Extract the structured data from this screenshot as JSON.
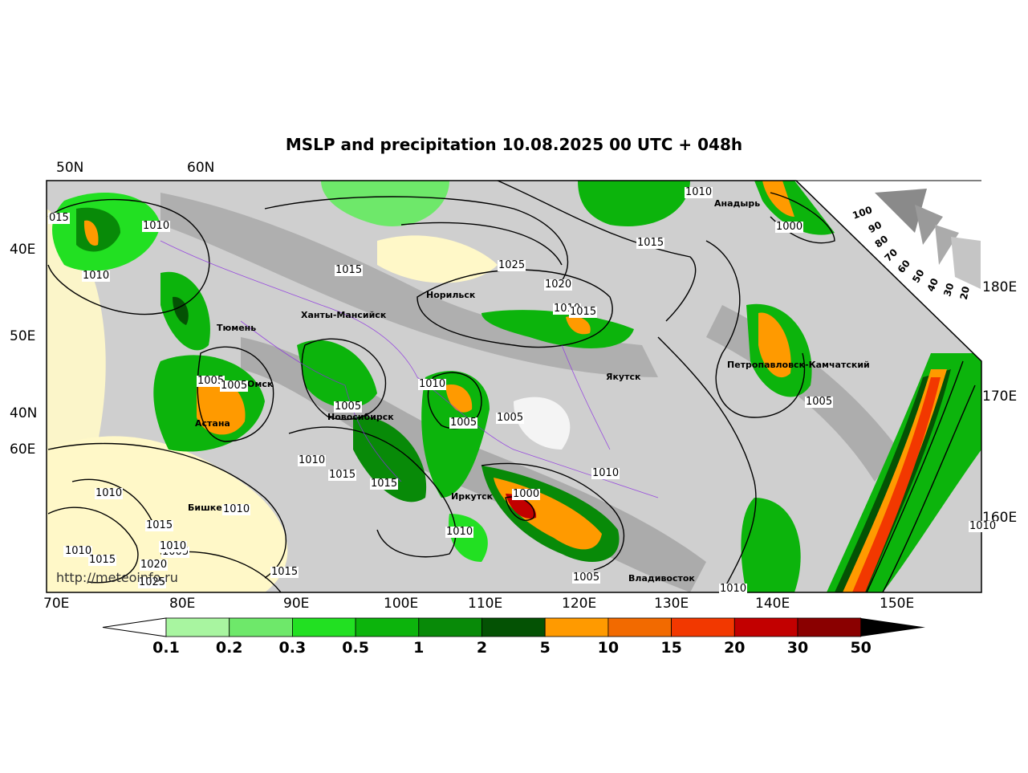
{
  "title": "MSLP and precipitation 10.08.2025 00 UTC + 048h",
  "watermark": "http://meteoinfo.ru",
  "grid_labels": {
    "top": [
      "50N",
      "60N"
    ],
    "left": [
      "40E",
      "50E",
      "40N",
      "60E"
    ],
    "right": [
      "180E",
      "170E",
      "160E"
    ],
    "bottom": [
      "70E",
      "80E",
      "90E",
      "100E",
      "110E",
      "120E",
      "130E",
      "140E",
      "150E"
    ]
  },
  "cities": [
    "Норильск",
    "Ханты-Мансийск",
    "Тюмень",
    "Омск",
    "Астана",
    "Новосибирск",
    "Иркутск",
    "Бишкек",
    "Якутск",
    "Анадырь",
    "Петропавловск-Камчатский",
    "Владивосток"
  ],
  "isobar_labels": [
    "015",
    "1010",
    "1010",
    "1015",
    "1025",
    "1020",
    "1010",
    "1015",
    "1010",
    "1015",
    "1000",
    "1005",
    "1005",
    "1005",
    "1010",
    "1005",
    "1005",
    "1010",
    "1015",
    "1015",
    "1010",
    "1010",
    "1000",
    "1010",
    "1010",
    "1015",
    "1010",
    "1005",
    "1010",
    "1010",
    "1015",
    "1020",
    "1025",
    "1005",
    "1015",
    "1010",
    "1010",
    "1005"
  ],
  "wind_scale": [
    "100",
    "90",
    "80",
    "70",
    "60",
    "50",
    "40",
    "30",
    "20"
  ],
  "colorbar": {
    "ticks": [
      "0.1",
      "0.2",
      "0.3",
      "0.5",
      "1",
      "2",
      "5",
      "10",
      "15",
      "20",
      "30",
      "50"
    ],
    "colors": [
      "#a8f5a0",
      "#6ee86a",
      "#22e022",
      "#0cb40c",
      "#088a08",
      "#045204",
      "#ff9a00",
      "#f26a00",
      "#f23800",
      "#c20000",
      "#8a0000"
    ]
  }
}
